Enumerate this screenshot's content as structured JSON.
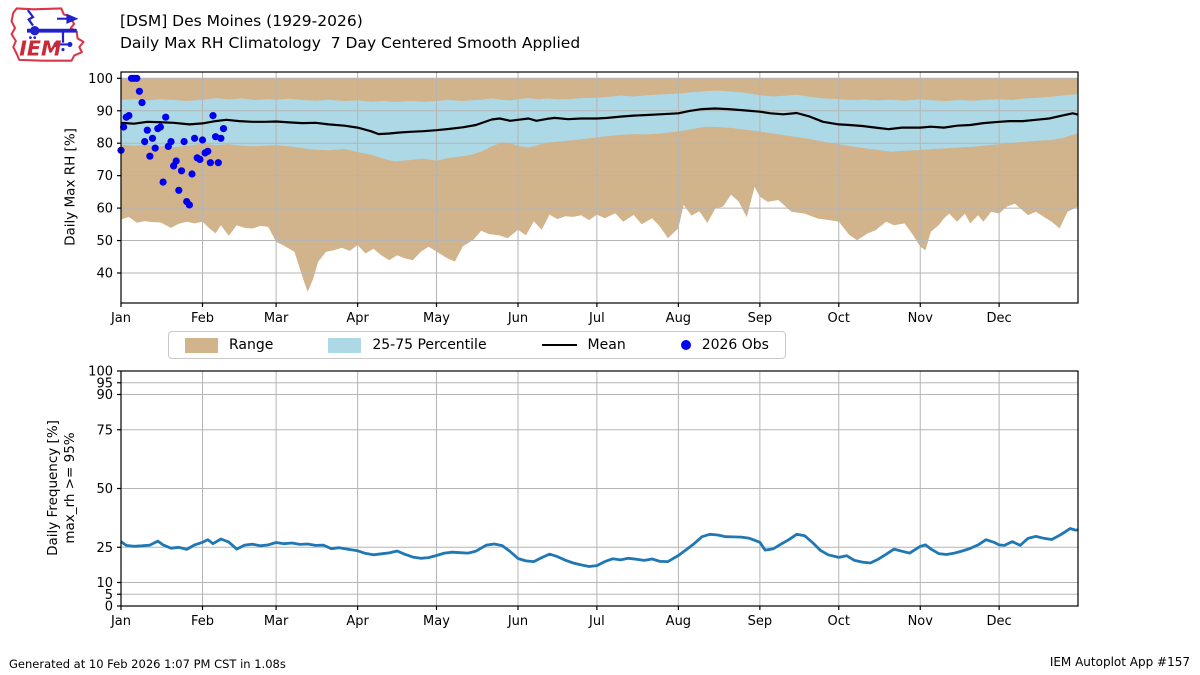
{
  "header": {
    "title_line1": "[DSM] Des Moines (1929-2026)",
    "title_line2": "Daily Max RH Climatology  7 Day Centered Smooth Applied",
    "logo_text": "IEM"
  },
  "footer": {
    "generated": "Generated at 10 Feb 2026 1:07 PM CST in 1.08s",
    "app": "IEM Autoplot App #157"
  },
  "colors": {
    "range": "#d2b48c",
    "percentile": "#add8e6",
    "mean": "#000000",
    "obs": "#0000ee",
    "frequency_line": "#1f77b4",
    "grid": "#b5b5b5",
    "logo_red": "#d9374a",
    "logo_blue": "#2222cc"
  },
  "legend": {
    "items": [
      {
        "label": "Range",
        "swatch": "patch",
        "color": "#d2b48c"
      },
      {
        "label": "25-75 Percentile",
        "swatch": "patch",
        "color": "#add8e6"
      },
      {
        "label": "Mean",
        "swatch": "line",
        "color": "#000000"
      },
      {
        "label": "2026 Obs",
        "swatch": "dot",
        "color": "#0000ee"
      }
    ]
  },
  "chart_data": [
    {
      "type": "area",
      "name": "daily-max-rh-climatology",
      "ylabel": "Daily Max RH [%]",
      "ylim": [
        30.7,
        101.9
      ],
      "yticks": [
        40,
        50,
        60,
        70,
        80,
        90,
        100
      ],
      "grid": true,
      "x_month_days": [
        0,
        31,
        59,
        90,
        120,
        151,
        181,
        212,
        243,
        273,
        304,
        334
      ],
      "x_month_labels": [
        "Jan",
        "Feb",
        "Mar",
        "Apr",
        "May",
        "Jun",
        "Jul",
        "Aug",
        "Sep",
        "Oct",
        "Nov",
        "Dec"
      ],
      "range_band": {
        "label": "Range",
        "color": "#d2b48c",
        "upper_constant": 100,
        "days": [
          0,
          3,
          6,
          9,
          12,
          15,
          19,
          22,
          25,
          28,
          31,
          34,
          36,
          38,
          41,
          44,
          47,
          50,
          53,
          56,
          59,
          62,
          66,
          68,
          70,
          71,
          73,
          75,
          78,
          81,
          84,
          87,
          90,
          93,
          96,
          99,
          102,
          105,
          108,
          111,
          114,
          117,
          120,
          124,
          127,
          130,
          134,
          137,
          140,
          144,
          147,
          151,
          154,
          157,
          160,
          163,
          166,
          169,
          172,
          175,
          178,
          181,
          184,
          188,
          191,
          195,
          198,
          202,
          205,
          208,
          212,
          214,
          217,
          220,
          223,
          226,
          229,
          232,
          235,
          238,
          241,
          243,
          246,
          250,
          255,
          260,
          265,
          270,
          273,
          277,
          280,
          284,
          287,
          291,
          294,
          298,
          301,
          304,
          306,
          308,
          311,
          313,
          315,
          318,
          321,
          323,
          326,
          328,
          331,
          334,
          337,
          340,
          342,
          345,
          348,
          351,
          354,
          357,
          360,
          364
        ],
        "lower": [
          56.5,
          57.3,
          55.5,
          56.0,
          55.7,
          55.6,
          53.9,
          55.2,
          55.8,
          55.3,
          55.8,
          53.5,
          52.2,
          54.7,
          51.5,
          54.7,
          53.9,
          53.7,
          54.5,
          54.2,
          49.6,
          48.4,
          46.5,
          41.4,
          36.5,
          34.2,
          38.0,
          43.5,
          46.5,
          47.0,
          47.8,
          46.8,
          48.6,
          46.0,
          47.5,
          45.5,
          43.9,
          45.5,
          44.5,
          43.9,
          46.5,
          48.1,
          46.6,
          44.6,
          43.5,
          48.2,
          50.2,
          53.0,
          52.0,
          51.6,
          50.7,
          53.3,
          51.6,
          55.9,
          53.3,
          58.0,
          56.6,
          57.5,
          57.3,
          57.8,
          56.3,
          58.0,
          56.9,
          58.4,
          55.8,
          57.9,
          55.0,
          56.9,
          54.3,
          50.7,
          53.8,
          61.0,
          57.7,
          59.0,
          55.4,
          59.8,
          60.5,
          64.1,
          62.0,
          57.2,
          66.5,
          63.5,
          61.9,
          62.5,
          58.9,
          58.3,
          56.8,
          56.2,
          55.8,
          51.7,
          50.1,
          52.2,
          53.2,
          55.8,
          54.7,
          55.3,
          52.0,
          48.1,
          47.0,
          52.7,
          54.7,
          56.8,
          58.3,
          55.8,
          58.3,
          55.3,
          57.8,
          55.8,
          58.9,
          58.3,
          60.5,
          61.4,
          59.9,
          57.8,
          58.9,
          57.3,
          55.8,
          53.7,
          58.9,
          60.4
        ]
      },
      "percentile_band": {
        "label": "25-75 Percentile",
        "color": "#add8e6",
        "days": [
          0,
          5,
          10,
          15,
          20,
          25,
          31,
          36,
          41,
          46,
          51,
          56,
          59,
          64,
          69,
          74,
          79,
          85,
          90,
          95,
          100,
          104,
          110,
          115,
          120,
          125,
          130,
          133,
          137,
          141,
          145,
          148,
          151,
          155,
          159,
          162,
          166,
          170,
          175,
          181,
          186,
          190,
          195,
          200,
          205,
          212,
          217,
          222,
          227,
          232,
          237,
          243,
          248,
          252,
          257,
          262,
          267,
          273,
          278,
          283,
          288,
          293,
          298,
          304,
          309,
          314,
          319,
          324,
          329,
          334,
          339,
          344,
          349,
          354,
          359,
          362,
          364
        ],
        "upper": [
          93.3,
          93.6,
          93.2,
          93.6,
          93.3,
          93.0,
          93.4,
          93.9,
          93.5,
          93.8,
          93.3,
          93.6,
          93.4,
          93.7,
          93.3,
          93.1,
          93.4,
          93.0,
          93.2,
          92.8,
          93.0,
          92.7,
          93.0,
          92.8,
          93.0,
          93.3,
          93.0,
          93.2,
          93.4,
          93.8,
          93.4,
          93.2,
          93.6,
          93.9,
          93.5,
          93.8,
          93.5,
          93.6,
          93.9,
          94.0,
          94.3,
          94.7,
          94.4,
          94.8,
          95.0,
          95.3,
          95.7,
          96.0,
          96.2,
          95.9,
          95.6,
          94.8,
          94.4,
          94.6,
          94.9,
          94.3,
          93.8,
          93.6,
          93.3,
          93.5,
          93.2,
          93.4,
          93.1,
          93.5,
          93.2,
          93.0,
          93.3,
          93.1,
          93.4,
          93.6,
          93.3,
          93.8,
          94.0,
          94.3,
          94.8,
          95.0,
          95.2
        ],
        "lower": [
          79.6,
          79.2,
          79.5,
          79.1,
          78.8,
          79.2,
          79.8,
          79.4,
          79.7,
          79.2,
          79.0,
          79.3,
          79.4,
          79.0,
          78.5,
          78.0,
          77.8,
          78.2,
          77.3,
          76.5,
          75.2,
          74.4,
          74.8,
          75.3,
          74.6,
          75.5,
          76.0,
          76.4,
          77.4,
          79.0,
          80.3,
          79.9,
          79.2,
          78.6,
          79.5,
          80.2,
          80.5,
          80.8,
          81.2,
          81.8,
          82.3,
          82.6,
          82.8,
          82.7,
          83.0,
          83.6,
          84.3,
          85.1,
          85.0,
          84.7,
          84.2,
          83.6,
          83.0,
          82.5,
          81.9,
          81.3,
          80.5,
          79.7,
          79.0,
          78.4,
          77.9,
          77.4,
          77.7,
          77.9,
          78.2,
          78.4,
          78.7,
          78.9,
          79.3,
          79.7,
          80.1,
          80.5,
          80.8,
          81.0,
          81.8,
          82.6,
          83.1
        ]
      },
      "mean_line": {
        "label": "Mean",
        "color": "#000000",
        "days": [
          0,
          5,
          10,
          14,
          20,
          26,
          31,
          36,
          40,
          45,
          50,
          55,
          59,
          64,
          69,
          74,
          79,
          85,
          90,
          95,
          98,
          102,
          106,
          110,
          115,
          120,
          125,
          130,
          135,
          141,
          144,
          148,
          151,
          155,
          158,
          162,
          165,
          170,
          175,
          181,
          185,
          190,
          195,
          200,
          205,
          212,
          216,
          221,
          226,
          231,
          236,
          243,
          247,
          252,
          257,
          262,
          267,
          273,
          277,
          282,
          287,
          292,
          297,
          304,
          308,
          313,
          318,
          323,
          328,
          334,
          338,
          343,
          348,
          353,
          358,
          362,
          364
        ],
        "values": [
          86.3,
          86.0,
          86.6,
          86.5,
          86.3,
          85.8,
          86.1,
          86.8,
          87.2,
          86.8,
          86.6,
          86.6,
          86.7,
          86.4,
          86.2,
          86.3,
          85.8,
          85.4,
          84.8,
          83.7,
          82.8,
          83.0,
          83.3,
          83.5,
          83.7,
          84.0,
          84.4,
          84.9,
          85.6,
          87.3,
          87.6,
          86.9,
          87.2,
          87.6,
          86.9,
          87.5,
          87.8,
          87.4,
          87.6,
          87.6,
          87.8,
          88.2,
          88.5,
          88.7,
          88.9,
          89.2,
          89.9,
          90.5,
          90.7,
          90.5,
          90.2,
          89.7,
          89.2,
          88.9,
          89.3,
          88.2,
          86.6,
          85.8,
          85.6,
          85.3,
          84.8,
          84.3,
          84.8,
          84.8,
          85.1,
          84.8,
          85.4,
          85.6,
          86.2,
          86.6,
          86.8,
          86.8,
          87.2,
          87.6,
          88.5,
          89.2,
          88.8
        ]
      },
      "obs": {
        "label": "2026 Obs",
        "color": "#0000ee",
        "points": [
          [
            0,
            77.8
          ],
          [
            1,
            85.0
          ],
          [
            2,
            88.0
          ],
          [
            3,
            88.5
          ],
          [
            4,
            100
          ],
          [
            5,
            100
          ],
          [
            6,
            100
          ],
          [
            7,
            96.0
          ],
          [
            8,
            92.5
          ],
          [
            9,
            80.5
          ],
          [
            10,
            84.0
          ],
          [
            11,
            76.0
          ],
          [
            12,
            81.5
          ],
          [
            13,
            78.5
          ],
          [
            14,
            84.5
          ],
          [
            15,
            85.0
          ],
          [
            16,
            68.0
          ],
          [
            17,
            88.0
          ],
          [
            18,
            79.0
          ],
          [
            19,
            80.5
          ],
          [
            20,
            73.0
          ],
          [
            21,
            74.5
          ],
          [
            22,
            65.5
          ],
          [
            23,
            71.5
          ],
          [
            24,
            80.5
          ],
          [
            25,
            62.0
          ],
          [
            26,
            61.0
          ],
          [
            27,
            70.5
          ],
          [
            28,
            81.5
          ],
          [
            29,
            75.5
          ],
          [
            30,
            75.0
          ],
          [
            31,
            81.0
          ],
          [
            32,
            77.0
          ],
          [
            33,
            77.5
          ],
          [
            34,
            74.0
          ],
          [
            35,
            88.5
          ],
          [
            36,
            82.0
          ],
          [
            37,
            74.0
          ],
          [
            38,
            81.5
          ],
          [
            39,
            84.5
          ]
        ]
      }
    },
    {
      "type": "line",
      "name": "daily-frequency-max-rh-ge-95",
      "ylabel_line1": "Daily Frequency [%]",
      "ylabel_line2": "max_rh >= 95%",
      "ylim": [
        0,
        100
      ],
      "yticks": [
        0,
        5,
        10,
        25,
        50,
        75,
        90,
        95,
        100
      ],
      "grid": true,
      "x_month_days": [
        0,
        31,
        59,
        90,
        120,
        151,
        181,
        212,
        243,
        273,
        304,
        334
      ],
      "x_month_labels": [
        "Jan",
        "Feb",
        "Mar",
        "Apr",
        "May",
        "Jun",
        "Jul",
        "Aug",
        "Sep",
        "Oct",
        "Nov",
        "Dec"
      ],
      "line": {
        "color": "#1f77b4",
        "days": [
          0,
          2,
          5,
          8,
          11,
          14,
          16,
          19,
          22,
          25,
          28,
          31,
          33,
          35,
          38,
          41,
          44,
          47,
          50,
          53,
          56,
          59,
          62,
          65,
          68,
          71,
          74,
          77,
          80,
          83,
          86,
          90,
          93,
          96,
          99,
          102,
          105,
          108,
          111,
          114,
          117,
          120,
          123,
          126,
          129,
          132,
          135,
          139,
          142,
          145,
          148,
          151,
          154,
          157,
          160,
          163,
          166,
          169,
          172,
          175,
          178,
          181,
          184,
          187,
          190,
          193,
          196,
          199,
          202,
          205,
          208,
          212,
          215,
          218,
          221,
          224,
          227,
          230,
          233,
          236,
          239,
          243,
          245,
          248,
          251,
          254,
          257,
          260,
          263,
          266,
          269,
          273,
          276,
          279,
          282,
          285,
          288,
          291,
          294,
          297,
          300,
          304,
          306,
          308,
          311,
          314,
          317,
          320,
          323,
          326,
          329,
          332,
          334,
          336,
          339,
          342,
          345,
          348,
          351,
          354,
          357,
          359,
          361,
          363,
          364
        ],
        "values": [
          27.4,
          25.8,
          25.4,
          25.6,
          25.9,
          27.6,
          26.0,
          24.6,
          25.0,
          24.1,
          26.0,
          27.1,
          28.2,
          26.5,
          28.5,
          27.2,
          24.2,
          25.9,
          26.3,
          25.6,
          26.0,
          27.0,
          26.5,
          26.8,
          26.2,
          26.4,
          25.8,
          25.9,
          24.4,
          24.8,
          24.2,
          23.5,
          22.4,
          21.8,
          22.2,
          22.6,
          23.4,
          22.0,
          20.8,
          20.3,
          20.6,
          21.5,
          22.5,
          22.9,
          22.7,
          22.5,
          23.3,
          25.9,
          26.4,
          25.7,
          23.2,
          20.2,
          19.2,
          18.9,
          20.6,
          22.1,
          21.0,
          19.5,
          18.3,
          17.5,
          16.8,
          17.2,
          18.9,
          20.1,
          19.6,
          20.3,
          19.9,
          19.4,
          20.0,
          19.0,
          18.9,
          21.5,
          24.0,
          26.5,
          29.5,
          30.5,
          30.2,
          29.5,
          29.4,
          29.3,
          28.8,
          27.1,
          23.8,
          24.3,
          26.3,
          28.2,
          30.5,
          29.9,
          27.0,
          23.7,
          21.8,
          20.7,
          21.4,
          19.4,
          18.7,
          18.3,
          19.9,
          22.0,
          24.2,
          23.3,
          22.5,
          25.4,
          26.0,
          24.3,
          22.3,
          21.9,
          22.5,
          23.4,
          24.5,
          26.0,
          28.2,
          27.1,
          26.0,
          25.8,
          27.4,
          25.8,
          28.8,
          29.6,
          28.8,
          28.3,
          30.1,
          31.5,
          33.0,
          32.3,
          32.4
        ]
      }
    }
  ]
}
